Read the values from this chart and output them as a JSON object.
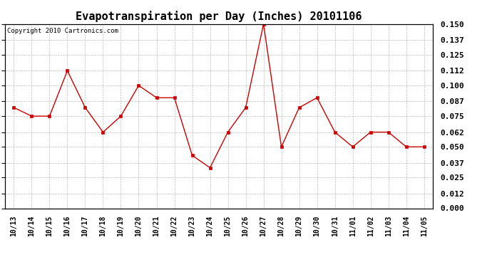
{
  "title": "Evapotranspiration per Day (Inches) 20101106",
  "copyright_text": "Copyright 2010 Cartronics.com",
  "x_labels": [
    "10/13",
    "10/14",
    "10/15",
    "10/16",
    "10/17",
    "10/18",
    "10/19",
    "10/20",
    "10/21",
    "10/22",
    "10/23",
    "10/24",
    "10/25",
    "10/26",
    "10/27",
    "10/28",
    "10/29",
    "10/30",
    "10/31",
    "11/01",
    "11/02",
    "11/03",
    "11/04",
    "11/05"
  ],
  "y_values": [
    0.082,
    0.075,
    0.075,
    0.112,
    0.082,
    0.062,
    0.075,
    0.1,
    0.09,
    0.09,
    0.043,
    0.033,
    0.062,
    0.082,
    0.15,
    0.05,
    0.082,
    0.09,
    0.062,
    0.05,
    0.062,
    0.062,
    0.05,
    0.05
  ],
  "line_color": "#cc0000",
  "marker": "s",
  "marker_size": 2.5,
  "ylim": [
    0.0,
    0.15
  ],
  "ytick_values": [
    0.0,
    0.012,
    0.025,
    0.037,
    0.05,
    0.062,
    0.075,
    0.087,
    0.1,
    0.112,
    0.125,
    0.137,
    0.15
  ],
  "background_color": "#ffffff",
  "plot_bg_color": "#ffffff",
  "grid_color": "#bbbbbb",
  "title_fontsize": 11,
  "copyright_fontsize": 6.5,
  "tick_fontsize": 7,
  "ytick_fontsize": 8
}
